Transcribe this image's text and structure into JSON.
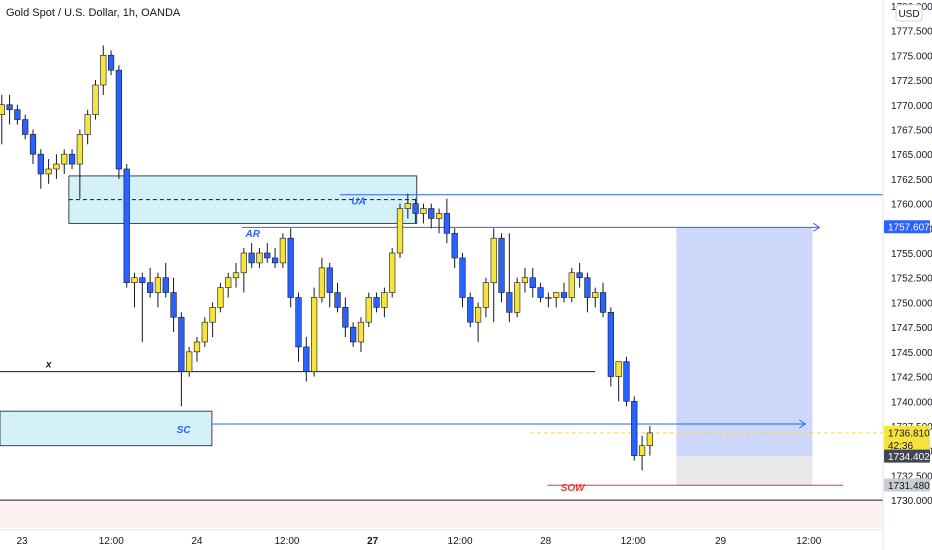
{
  "header": {
    "title": "Gold Spot / U.S. Dollar, 1h, OANDA"
  },
  "axis": {
    "currency": "USD"
  },
  "colors": {
    "up": "#f7e33e",
    "down": "#2962ff",
    "wick": "#131722",
    "zone": "#d4f1f9",
    "line": "#2962ff",
    "target": "#bcc9f7",
    "stop": "#e8e8e8",
    "sow": "#e53935"
  },
  "chart_data": {
    "type": "candlestick",
    "title": "Gold Spot / U.S. Dollar, 1h, OANDA",
    "ylim": [
      1729.2,
      1780.6
    ],
    "xlim": [
      0,
      100
    ],
    "y_ticks": [
      1730,
      1732.5,
      1735,
      1737.5,
      1740,
      1742.5,
      1745,
      1747.5,
      1750,
      1752.5,
      1755,
      1757.5,
      1760,
      1762.5,
      1765,
      1767.5,
      1770,
      1772.5,
      1775,
      1777.5,
      1780
    ],
    "x_ticks": [
      {
        "x": 2.5,
        "label": "23"
      },
      {
        "x": 12.6,
        "label": "12:00"
      },
      {
        "x": 22.3,
        "label": "24"
      },
      {
        "x": 32.5,
        "label": "12:00"
      },
      {
        "x": 42.2,
        "label": "27"
      },
      {
        "x": 52.1,
        "label": "12:00"
      },
      {
        "x": 61.8,
        "label": "28"
      },
      {
        "x": 71.7,
        "label": "12:00"
      },
      {
        "x": 81.6,
        "label": "29"
      },
      {
        "x": 91.6,
        "label": "12:00"
      }
    ],
    "candles_ohlc": [
      [
        1769,
        1771,
        1766,
        1770
      ],
      [
        1770,
        1771,
        1768,
        1769.5
      ],
      [
        1769.5,
        1770,
        1768,
        1768.5
      ],
      [
        1768.5,
        1769,
        1766.5,
        1767
      ],
      [
        1767,
        1767.5,
        1764,
        1765
      ],
      [
        1765,
        1765.5,
        1761.5,
        1763
      ],
      [
        1763,
        1764.5,
        1762,
        1763.5
      ],
      [
        1763.5,
        1765,
        1762.5,
        1764
      ],
      [
        1764,
        1765.5,
        1763,
        1765
      ],
      [
        1765,
        1765.5,
        1763.5,
        1764
      ],
      [
        1764,
        1767.5,
        1760.5,
        1767
      ],
      [
        1767,
        1769.5,
        1766,
        1769
      ],
      [
        1769,
        1772.5,
        1768.5,
        1772
      ],
      [
        1772,
        1776,
        1771,
        1775
      ],
      [
        1775,
        1775.5,
        1773,
        1773.5
      ],
      [
        1773.5,
        1774,
        1762.5,
        1763.5
      ],
      [
        1763.5,
        1764,
        1751.5,
        1752
      ],
      [
        1752,
        1753,
        1749.5,
        1752.5
      ],
      [
        1752.5,
        1753,
        1746,
        1752
      ],
      [
        1752,
        1753.5,
        1750.5,
        1751
      ],
      [
        1751,
        1753,
        1749.5,
        1752.5
      ],
      [
        1752.5,
        1754,
        1750.5,
        1751
      ],
      [
        1751,
        1752.5,
        1747,
        1748.5
      ],
      [
        1748.5,
        1749,
        1739.5,
        1743
      ],
      [
        1743,
        1745.5,
        1742.5,
        1745
      ],
      [
        1745,
        1746.5,
        1744,
        1746
      ],
      [
        1746,
        1748.5,
        1745.5,
        1748
      ],
      [
        1748,
        1750,
        1746.5,
        1749.5
      ],
      [
        1749.5,
        1752,
        1749,
        1751.5
      ],
      [
        1751.5,
        1753,
        1750.5,
        1752.5
      ],
      [
        1752.5,
        1754,
        1751.5,
        1753
      ],
      [
        1753,
        1755.5,
        1751,
        1755
      ],
      [
        1755,
        1756,
        1753.5,
        1754
      ],
      [
        1754,
        1755.5,
        1753.5,
        1755
      ],
      [
        1755,
        1756,
        1754,
        1754.5
      ],
      [
        1754.5,
        1755.5,
        1753.5,
        1754
      ],
      [
        1754,
        1757,
        1753.5,
        1756.5
      ],
      [
        1756.5,
        1757.5,
        1749.5,
        1750.5
      ],
      [
        1750.5,
        1751,
        1744,
        1745.5
      ],
      [
        1745.5,
        1746.5,
        1742,
        1743
      ],
      [
        1743,
        1751.5,
        1742.5,
        1750.5
      ],
      [
        1750.5,
        1754.5,
        1750,
        1753.5
      ],
      [
        1753.5,
        1754,
        1749.5,
        1751
      ],
      [
        1751,
        1752,
        1749,
        1749.5
      ],
      [
        1749.5,
        1750.5,
        1746.5,
        1747.5
      ],
      [
        1747.5,
        1748,
        1745.5,
        1746
      ],
      [
        1746,
        1748.5,
        1745,
        1748
      ],
      [
        1748,
        1751,
        1747.5,
        1750.5
      ],
      [
        1750.5,
        1751,
        1749,
        1749.5
      ],
      [
        1749.5,
        1751.5,
        1748.5,
        1751
      ],
      [
        1751,
        1755.5,
        1750.5,
        1755
      ],
      [
        1755,
        1760,
        1754.5,
        1759.5
      ],
      [
        1759.5,
        1761,
        1758.5,
        1760
      ],
      [
        1760,
        1760.5,
        1758,
        1759
      ],
      [
        1759,
        1760,
        1758,
        1759.5
      ],
      [
        1759.5,
        1760,
        1757.5,
        1758.5
      ],
      [
        1758.5,
        1759.5,
        1757,
        1759
      ],
      [
        1759,
        1760.5,
        1756,
        1757
      ],
      [
        1757,
        1757.5,
        1753.5,
        1754.5
      ],
      [
        1754.5,
        1755,
        1749.5,
        1750.5
      ],
      [
        1750.5,
        1751,
        1747.5,
        1748
      ],
      [
        1748,
        1750,
        1746,
        1749.5
      ],
      [
        1749.5,
        1752.5,
        1748.5,
        1752
      ],
      [
        1752,
        1757.5,
        1748,
        1756.5
      ],
      [
        1756.5,
        1757,
        1750,
        1751
      ],
      [
        1751,
        1757,
        1748,
        1749
      ],
      [
        1749,
        1752.5,
        1748.5,
        1752
      ],
      [
        1752,
        1753.5,
        1751,
        1752.5
      ],
      [
        1752.5,
        1753.5,
        1750.5,
        1751.5
      ],
      [
        1751.5,
        1752,
        1750,
        1750.5
      ],
      [
        1750.5,
        1751,
        1749.5,
        1750.5
      ],
      [
        1750.5,
        1751,
        1749.5,
        1751
      ],
      [
        1751,
        1752,
        1750,
        1750.5
      ],
      [
        1750.5,
        1753.5,
        1750,
        1753
      ],
      [
        1753,
        1754,
        1751.5,
        1752.5
      ],
      [
        1752.5,
        1753,
        1749,
        1750.5
      ],
      [
        1750.5,
        1751.5,
        1749.5,
        1751
      ],
      [
        1751,
        1752,
        1748.5,
        1749
      ],
      [
        1749,
        1749.5,
        1741.5,
        1742.5
      ],
      [
        1742.5,
        1743.5,
        1740,
        1744
      ],
      [
        1744,
        1744.5,
        1739.5,
        1740
      ],
      [
        1740,
        1740.5,
        1734,
        1734.5
      ],
      [
        1734.5,
        1736.5,
        1733,
        1735.5
      ],
      [
        1735.5,
        1737.5,
        1734.5,
        1736.8
      ]
    ],
    "zones": [
      {
        "x0": 7.8,
        "x1": 47.2,
        "y0": 1758,
        "y1": 1762.8
      },
      {
        "x0": 0,
        "x1": 24.0,
        "y0": 1735.5,
        "y1": 1739
      }
    ],
    "horizontal_lines": [
      {
        "x0": 0,
        "x1": 100,
        "y": 1730,
        "color": "#131722"
      },
      {
        "x0": 0,
        "x1": 67.4,
        "y": 1743,
        "color": "#131722"
      },
      {
        "x0": 7.8,
        "x1": 47.2,
        "y": 1760.4,
        "color": "#131722",
        "dashed": true
      },
      {
        "x0": 38.5,
        "x1": 100,
        "y": 1760.9,
        "color": "#2962ff"
      },
      {
        "x0": 27.4,
        "x1": 92.8,
        "y": 1757.6,
        "color": "#2962ff",
        "arrow": true
      },
      {
        "x0": 24.0,
        "x1": 91.2,
        "y": 1737.7,
        "color": "#2962ff",
        "arrow": true
      },
      {
        "x0": 62.0,
        "x1": 95.5,
        "y": 1731.5,
        "color": "#e53935"
      },
      {
        "x0": 60,
        "x1": 100,
        "y": 1736.8,
        "color": "#f2d94e",
        "dashed": true
      }
    ],
    "target_box": {
      "x0": 76.6,
      "x1": 92.0,
      "y_top": 1757.6,
      "y_mid": 1734.4,
      "y_bottom": 1731.5
    },
    "annotations": [
      {
        "text": "AR",
        "x": 27.8,
        "y": 1756.6,
        "color": "#2962ff"
      },
      {
        "text": "UA",
        "x": 39.8,
        "y": 1759.9,
        "color": "#2962ff"
      },
      {
        "text": "SC",
        "x": 20.0,
        "y": 1736.8,
        "color": "#2962ff"
      },
      {
        "text": "x",
        "x": 5.2,
        "y": 1743.4,
        "color": "#131722"
      },
      {
        "text": "SOW",
        "x": 63.5,
        "y": 1730.9,
        "color": "#e53935"
      }
    ],
    "price_labels": [
      {
        "y": 1757.607,
        "text": "1757.607",
        "bg": "#2962ff",
        "fg": "#ffffff"
      },
      {
        "y": 1736.81,
        "text": "1736.810",
        "bg": "#f7e33e",
        "fg": "#131722",
        "sub": "42:36"
      },
      {
        "y": 1734.402,
        "text": "1734.402",
        "bg": "#434651",
        "fg": "#ffffff"
      },
      {
        "y": 1731.48,
        "text": "1731.480",
        "bg": "#c9ccd3",
        "fg": "#131722"
      }
    ]
  }
}
